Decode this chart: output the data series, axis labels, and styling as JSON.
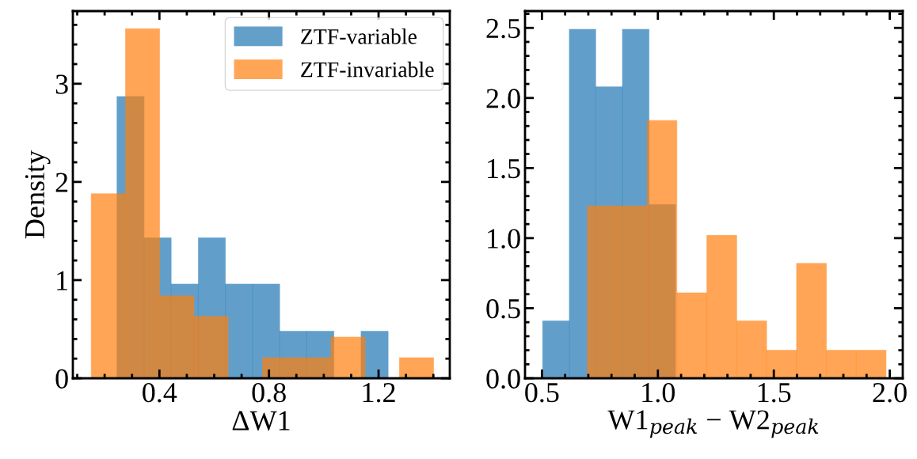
{
  "chart_data": [
    {
      "type": "histogram",
      "xlabel": "ΔW1",
      "ylabel": "Density",
      "xlim": [
        0.084,
        1.46
      ],
      "ylim": [
        0,
        3.74
      ],
      "xticks": [
        0.4,
        0.8,
        1.2
      ],
      "yticks": [
        0,
        1,
        2,
        3
      ],
      "legend": "top right",
      "bins": [
        0.245,
        0.344,
        0.443,
        0.542,
        0.641,
        0.74,
        0.839,
        0.938,
        1.037,
        1.136,
        1.235
      ],
      "series": [
        {
          "name": "ZTF-variable",
          "color": "#1f77b4",
          "values": [
            2.87,
            1.43,
            0.96,
            1.43,
            0.96,
            0.96,
            0.48,
            0.48,
            0,
            0.48
          ]
        },
        {
          "name": "ZTF-invariable",
          "color": "#ff7f0e",
          "bins": [
            0.151,
            0.276,
            0.401,
            0.526,
            0.651,
            0.776,
            0.901,
            1.026,
            1.151,
            1.276,
            1.401
          ],
          "values": [
            1.88,
            3.56,
            0.84,
            0.63,
            0,
            0.21,
            0.21,
            0.42,
            0,
            0.21
          ]
        }
      ]
    },
    {
      "type": "histogram",
      "xlabel": "W1$_{peak}$ − W2$_{peak}$",
      "xlim": [
        0.427,
        2.056
      ],
      "ylim": [
        0,
        2.62
      ],
      "xticks": [
        0.5,
        {
          "value": 1,
          "label": "1.0"
        },
        1.5,
        {
          "value": 2,
          "label": "2.0"
        }
      ],
      "yticks": [
        {
          "value": 0,
          "label": "0.0"
        },
        0.5,
        {
          "value": 1,
          "label": "1.0"
        },
        1.5,
        {
          "value": 2,
          "label": "2.0"
        },
        2.5
      ],
      "bins": [
        0.503,
        0.618,
        0.732,
        0.847,
        0.962,
        1.076
      ],
      "series": [
        {
          "color": "#1f77b4",
          "values": [
            0.41,
            2.49,
            2.08,
            2.49,
            1.24
          ]
        },
        {
          "color": "#ff7f0e",
          "bins": [
            0.696,
            0.825,
            0.954,
            1.082,
            1.211,
            1.34,
            1.469,
            1.598,
            1.727,
            1.855,
            1.984
          ],
          "values": [
            1.23,
            1.23,
            1.84,
            0.61,
            1.02,
            0.41,
            0.2,
            0.82,
            0.2,
            0.2
          ]
        }
      ]
    }
  ]
}
